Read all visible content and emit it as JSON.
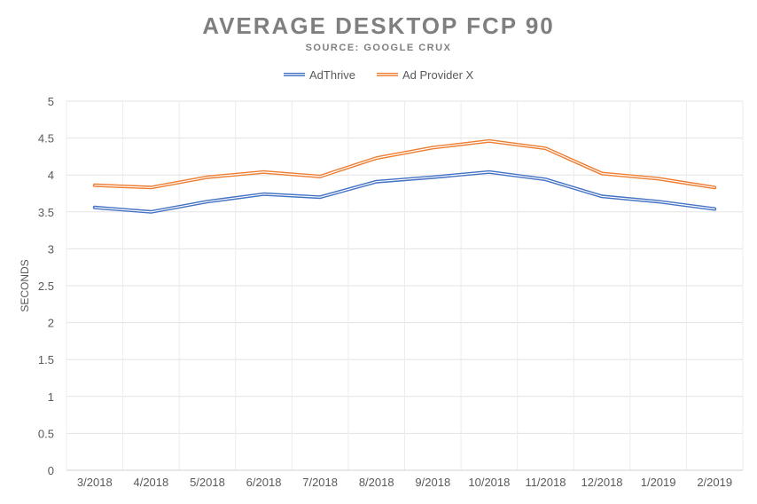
{
  "chart_data": {
    "type": "line",
    "title": "AVERAGE DESKTOP FCP 90",
    "subtitle": "SOURCE: GOOGLE CRUX",
    "xlabel": "",
    "ylabel": "SECONDS",
    "categories": [
      "3/2018",
      "4/2018",
      "5/2018",
      "6/2018",
      "7/2018",
      "8/2018",
      "9/2018",
      "10/2018",
      "11/2018",
      "12/2018",
      "1/2019",
      "2/2019"
    ],
    "ylim": [
      0,
      5
    ],
    "yticks": [
      "0",
      "0.5",
      "1",
      "1.5",
      "2",
      "2.5",
      "3",
      "3.5",
      "4",
      "4.5",
      "5"
    ],
    "grid": true,
    "legend_position": "top",
    "series": [
      {
        "name": "AdThrive",
        "color": "#4472c4",
        "values": [
          3.56,
          3.5,
          3.64,
          3.74,
          3.7,
          3.91,
          3.97,
          4.04,
          3.94,
          3.71,
          3.64,
          3.54
        ]
      },
      {
        "name": "Ad Provider X",
        "color": "#ed7d31",
        "values": [
          3.86,
          3.83,
          3.97,
          4.04,
          3.98,
          4.23,
          4.37,
          4.46,
          4.36,
          4.02,
          3.95,
          3.83
        ]
      }
    ]
  }
}
